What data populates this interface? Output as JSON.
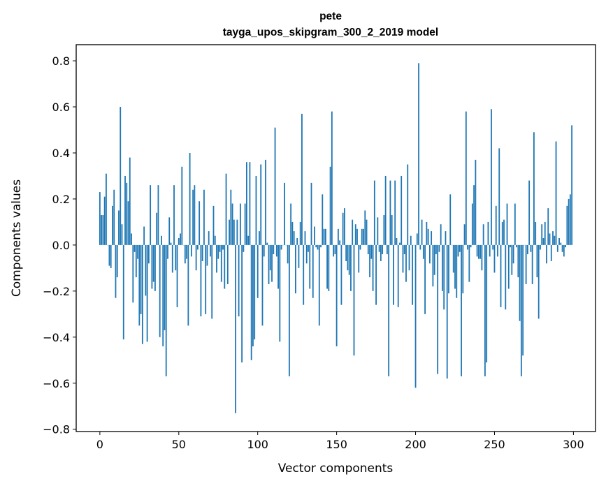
{
  "chart_data": {
    "type": "bar",
    "title": "pete",
    "subtitle": "tayga_upos_skipgram_300_2_2019 model",
    "xlabel": "Vector components",
    "ylabel": "Components values",
    "xlim": [
      -15,
      314
    ],
    "ylim": [
      -0.81,
      0.87
    ],
    "xticks": [
      0,
      50,
      100,
      150,
      200,
      250,
      300
    ],
    "yticks": [
      -0.8,
      -0.6,
      -0.4,
      -0.2,
      0.0,
      0.2,
      0.4,
      0.6,
      0.8
    ],
    "ytick_labels": [
      "−0.8",
      "−0.6",
      "−0.4",
      "−0.2",
      "0.0",
      "0.2",
      "0.4",
      "0.6",
      "0.8"
    ],
    "xtick_labels": [
      "0",
      "50",
      "100",
      "150",
      "200",
      "250",
      "300"
    ],
    "color": "#1f77b4",
    "values": [
      0.23,
      0.13,
      0.13,
      0.21,
      0.31,
      0.0,
      -0.09,
      -0.1,
      0.17,
      0.24,
      -0.23,
      -0.14,
      0.15,
      0.6,
      0.09,
      -0.41,
      0.3,
      0.27,
      0.19,
      0.38,
      0.05,
      -0.25,
      -0.03,
      -0.14,
      -0.06,
      -0.35,
      -0.3,
      -0.43,
      0.08,
      -0.22,
      -0.42,
      -0.08,
      0.26,
      -0.19,
      -0.16,
      -0.2,
      0.14,
      0.26,
      -0.4,
      0.04,
      -0.44,
      -0.37,
      -0.57,
      -0.06,
      0.12,
      0.01,
      -0.12,
      0.26,
      -0.11,
      -0.27,
      0.03,
      0.05,
      0.34,
      0.0,
      -0.08,
      -0.06,
      -0.35,
      0.4,
      -0.05,
      0.24,
      0.26,
      -0.11,
      -0.02,
      0.19,
      -0.31,
      -0.07,
      0.24,
      -0.3,
      -0.09,
      0.06,
      -0.05,
      -0.32,
      0.17,
      0.04,
      -0.12,
      -0.06,
      -0.03,
      -0.16,
      -0.02,
      -0.19,
      0.31,
      -0.17,
      0.11,
      0.24,
      0.18,
      0.11,
      -0.73,
      0.11,
      -0.31,
      0.18,
      -0.51,
      -0.03,
      0.18,
      0.36,
      0.04,
      0.36,
      -0.5,
      -0.44,
      -0.41,
      0.3,
      -0.23,
      0.06,
      0.35,
      -0.35,
      -0.05,
      0.37,
      0.01,
      -0.17,
      -0.11,
      -0.16,
      -0.04,
      0.51,
      -0.05,
      -0.19,
      -0.42,
      -0.02,
      0.0,
      0.27,
      0.0,
      -0.08,
      -0.57,
      0.18,
      0.1,
      0.06,
      -0.21,
      0.03,
      -0.1,
      0.1,
      0.57,
      -0.26,
      0.06,
      -0.08,
      -0.03,
      -0.19,
      0.27,
      -0.23,
      0.08,
      -0.01,
      -0.02,
      -0.35,
      -0.01,
      0.22,
      0.07,
      0.07,
      -0.19,
      -0.2,
      0.34,
      0.58,
      -0.05,
      -0.04,
      -0.44,
      0.07,
      0.02,
      -0.26,
      0.14,
      0.16,
      -0.07,
      -0.11,
      -0.13,
      -0.2,
      0.11,
      -0.48,
      0.09,
      0.07,
      -0.12,
      -0.02,
      0.07,
      0.07,
      0.15,
      0.11,
      -0.04,
      -0.14,
      -0.06,
      -0.2,
      0.28,
      -0.26,
      0.12,
      -0.03,
      -0.07,
      -0.04,
      0.13,
      0.3,
      -0.04,
      -0.57,
      0.28,
      0.13,
      -0.26,
      0.28,
      0.03,
      -0.27,
      0.01,
      0.3,
      -0.12,
      -0.04,
      -0.16,
      0.35,
      -0.11,
      0.04,
      -0.26,
      0.0,
      -0.62,
      0.05,
      0.79,
      -0.02,
      0.11,
      -0.06,
      -0.3,
      0.1,
      0.07,
      -0.08,
      0.06,
      -0.18,
      -0.13,
      -0.04,
      -0.56,
      -0.03,
      0.09,
      -0.2,
      -0.28,
      0.06,
      -0.58,
      -0.21,
      0.22,
      0.0,
      -0.12,
      -0.19,
      -0.23,
      -0.05,
      -0.03,
      -0.57,
      -0.21,
      0.09,
      0.58,
      -0.02,
      -0.16,
      -0.01,
      0.18,
      0.26,
      0.37,
      -0.05,
      -0.06,
      -0.06,
      -0.11,
      0.09,
      -0.57,
      -0.51,
      0.1,
      -0.05,
      0.59,
      -0.02,
      -0.12,
      0.17,
      -0.05,
      0.42,
      -0.27,
      0.1,
      0.11,
      -0.28,
      0.18,
      -0.19,
      -0.01,
      -0.13,
      -0.08,
      0.18,
      -0.01,
      -0.14,
      -0.33,
      -0.57,
      -0.48,
      0.0,
      -0.17,
      -0.04,
      0.28,
      -0.03,
      -0.17,
      0.49,
      0.1,
      -0.14,
      -0.32,
      -0.02,
      0.09,
      0.03,
      0.1,
      -0.08,
      0.16,
      0.05,
      -0.07,
      0.06,
      0.04,
      0.45,
      -0.03,
      0.03,
      0.01,
      -0.03,
      -0.05,
      -0.01,
      0.17,
      0.2,
      0.22,
      0.52
    ]
  }
}
